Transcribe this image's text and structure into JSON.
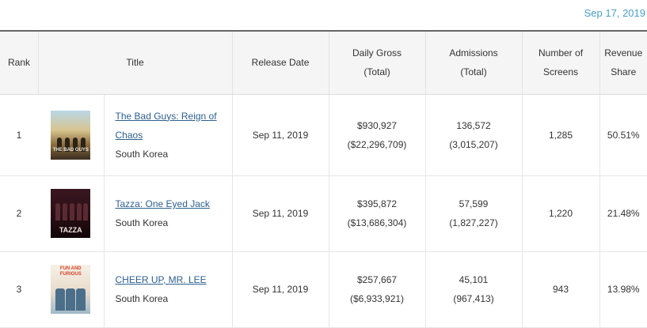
{
  "date": "Sep 17, 2019",
  "headers": {
    "rank": "Rank",
    "title": "Title",
    "release_date": "Release Date",
    "daily_gross": "Daily Gross",
    "daily_gross_sub": "(Total)",
    "admissions": "Admissions",
    "admissions_sub": "(Total)",
    "screens_1": "Number of",
    "screens_2": "Screens",
    "share_1": "Revenue",
    "share_2": "Share"
  },
  "rows": [
    {
      "rank": "1",
      "poster_icon": "movie-poster",
      "poster_caption": "THE BAD GUYS",
      "title_line1": "The Bad Guys: Reign of",
      "title_line2": "Chaos",
      "country": "South Korea",
      "release_date": "Sep 11, 2019",
      "daily_gross": "$930,927",
      "total_gross": "($22,296,709)",
      "admissions": "136,572",
      "total_admissions": "(3,015,207)",
      "screens": "1,285",
      "share": "50.51%"
    },
    {
      "rank": "2",
      "poster_icon": "movie-poster",
      "poster_caption": "TAZZA",
      "title_line1": "Tazza: One Eyed Jack",
      "title_line2": "",
      "country": "South Korea",
      "release_date": "Sep 11, 2019",
      "daily_gross": "$395,872",
      "total_gross": "($13,686,304)",
      "admissions": "57,599",
      "total_admissions": "(1,827,227)",
      "screens": "1,220",
      "share": "21.48%"
    },
    {
      "rank": "3",
      "poster_icon": "movie-poster",
      "poster_caption": "FUN AND FURIOUS",
      "title_line1": "CHEER UP, MR. LEE",
      "title_line2": "",
      "country": "South Korea",
      "release_date": "Sep 11, 2019",
      "daily_gross": "$257,667",
      "total_gross": "($6,933,921)",
      "admissions": "45,101",
      "total_admissions": "(967,413)",
      "screens": "943",
      "share": "13.98%"
    }
  ],
  "colors": {
    "date": "#4a9fc6",
    "link": "#2d5f8e",
    "header_bg": "#f5f5f5"
  }
}
